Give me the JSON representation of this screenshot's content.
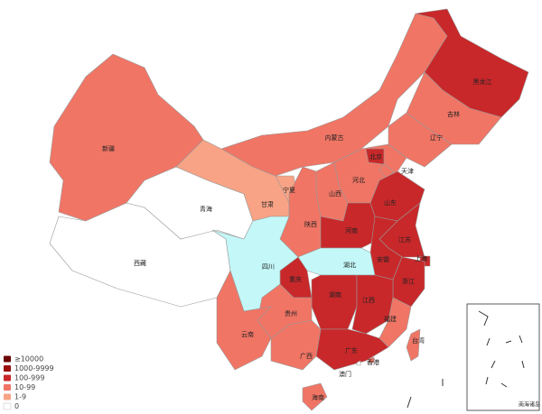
{
  "legend": [
    {
      "label": "≥10000",
      "color": "#6b0505"
    },
    {
      "label": "1000-9999",
      "color": "#9a1010"
    },
    {
      "label": "100-999",
      "color": "#c8282a"
    },
    {
      "label": "10-99",
      "color": "#f07565"
    },
    {
      "label": "1-9",
      "color": "#f8a385"
    },
    {
      "label": "0",
      "color": "#ffffff"
    }
  ],
  "provinces": [
    {
      "name": "新疆",
      "color": "#f07565"
    },
    {
      "name": "西藏",
      "color": "#ffffff"
    },
    {
      "name": "青海",
      "color": "#ffffff"
    },
    {
      "name": "甘肃",
      "color": "#f8a385"
    },
    {
      "name": "宁夏",
      "color": "#f8a385"
    },
    {
      "name": "内蒙古",
      "color": "#f07565"
    },
    {
      "name": "黑龙江",
      "color": "#c8282a"
    },
    {
      "name": "吉林",
      "color": "#f07565"
    },
    {
      "name": "辽宁",
      "color": "#f07565"
    },
    {
      "name": "河北",
      "color": "#f07565"
    },
    {
      "name": "北京",
      "color": "#c8282a"
    },
    {
      "name": "天津",
      "color": "#f07565"
    },
    {
      "name": "山西",
      "color": "#f07565"
    },
    {
      "name": "陕西",
      "color": "#f07565"
    },
    {
      "name": "山东",
      "color": "#c8282a"
    },
    {
      "name": "河南",
      "color": "#c8282a"
    },
    {
      "name": "江苏",
      "color": "#c8282a"
    },
    {
      "name": "安徽",
      "color": "#c8282a"
    },
    {
      "name": "上海",
      "color": "#c8282a"
    },
    {
      "name": "浙江",
      "color": "#c8282a"
    },
    {
      "name": "湖北",
      "color": "#c4f8f8"
    },
    {
      "name": "重庆",
      "color": "#c8282a"
    },
    {
      "name": "四川",
      "color": "#c4f8f8"
    },
    {
      "name": "湖南",
      "color": "#c8282a"
    },
    {
      "name": "江西",
      "color": "#c8282a"
    },
    {
      "name": "福建",
      "color": "#f07565"
    },
    {
      "name": "广东",
      "color": "#c8282a"
    },
    {
      "name": "广西",
      "color": "#f07565"
    },
    {
      "name": "贵州",
      "color": "#f07565"
    },
    {
      "name": "云南",
      "color": "#f07565"
    },
    {
      "name": "海南",
      "color": "#f07565"
    },
    {
      "name": "台湾",
      "color": "#f07565"
    },
    {
      "name": "香港",
      "color": "#f07565"
    },
    {
      "name": "澳门",
      "color": "#ffffff"
    }
  ],
  "inset_label": "南海诸岛"
}
